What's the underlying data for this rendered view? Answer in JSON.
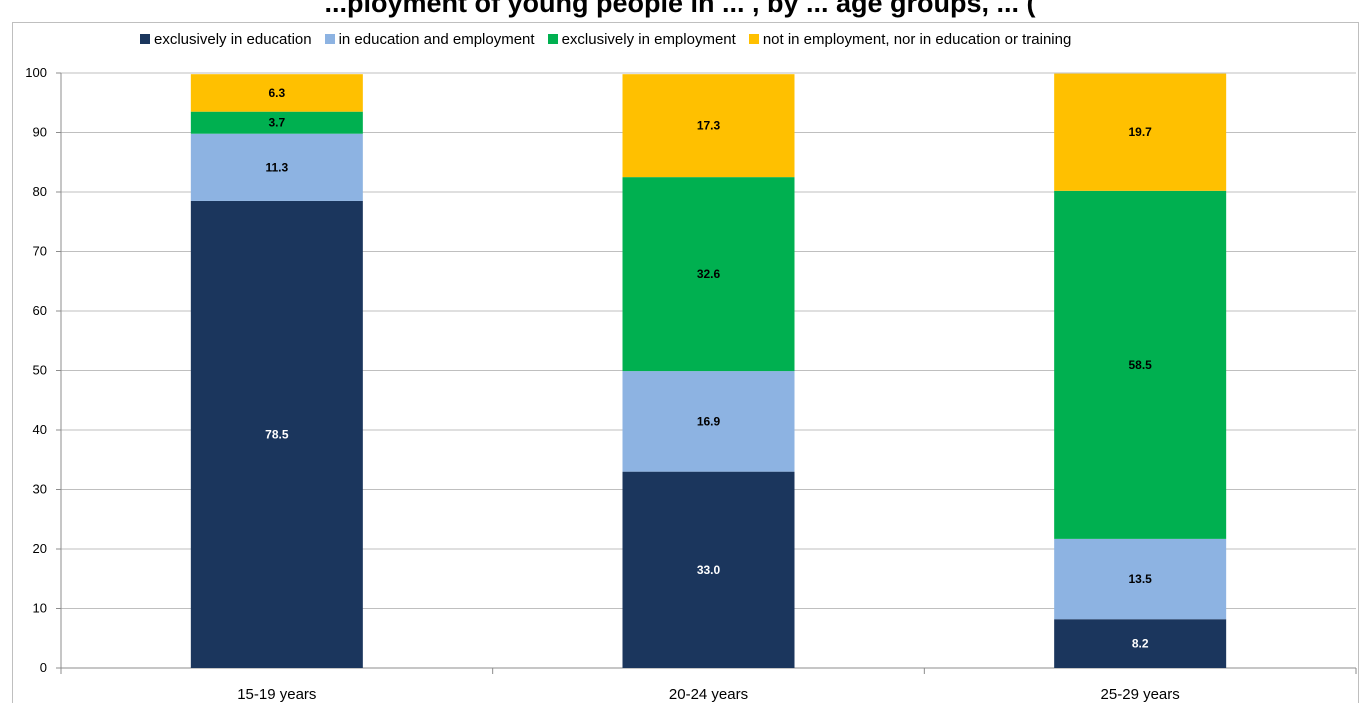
{
  "chart_data": {
    "type": "bar",
    "stacked": true,
    "title": "...ployment of young people in ... , by ... age groups, ... (",
    "categories": [
      "15-19 years",
      "20-24 years",
      "25-29 years"
    ],
    "series": [
      {
        "name": "exclusively in education",
        "color": "#1b365d",
        "label_color": "#ffffff",
        "values": [
          78.5,
          33.0,
          8.2
        ]
      },
      {
        "name": "in education and employment",
        "color": "#8db3e2",
        "label_color": "#000000",
        "values": [
          11.3,
          16.9,
          13.5
        ]
      },
      {
        "name": "exclusively in employment",
        "color": "#00b050",
        "label_color": "#000000",
        "values": [
          3.7,
          32.6,
          58.5
        ]
      },
      {
        "name": "not in employment, nor in education or training",
        "color": "#ffc000",
        "label_color": "#000000",
        "values": [
          6.3,
          17.3,
          19.7
        ]
      }
    ],
    "ylim": [
      0,
      100
    ],
    "yticks": [
      0,
      10,
      20,
      30,
      40,
      50,
      60,
      70,
      80,
      90,
      100
    ],
    "grid": true,
    "legend_position": "top"
  }
}
